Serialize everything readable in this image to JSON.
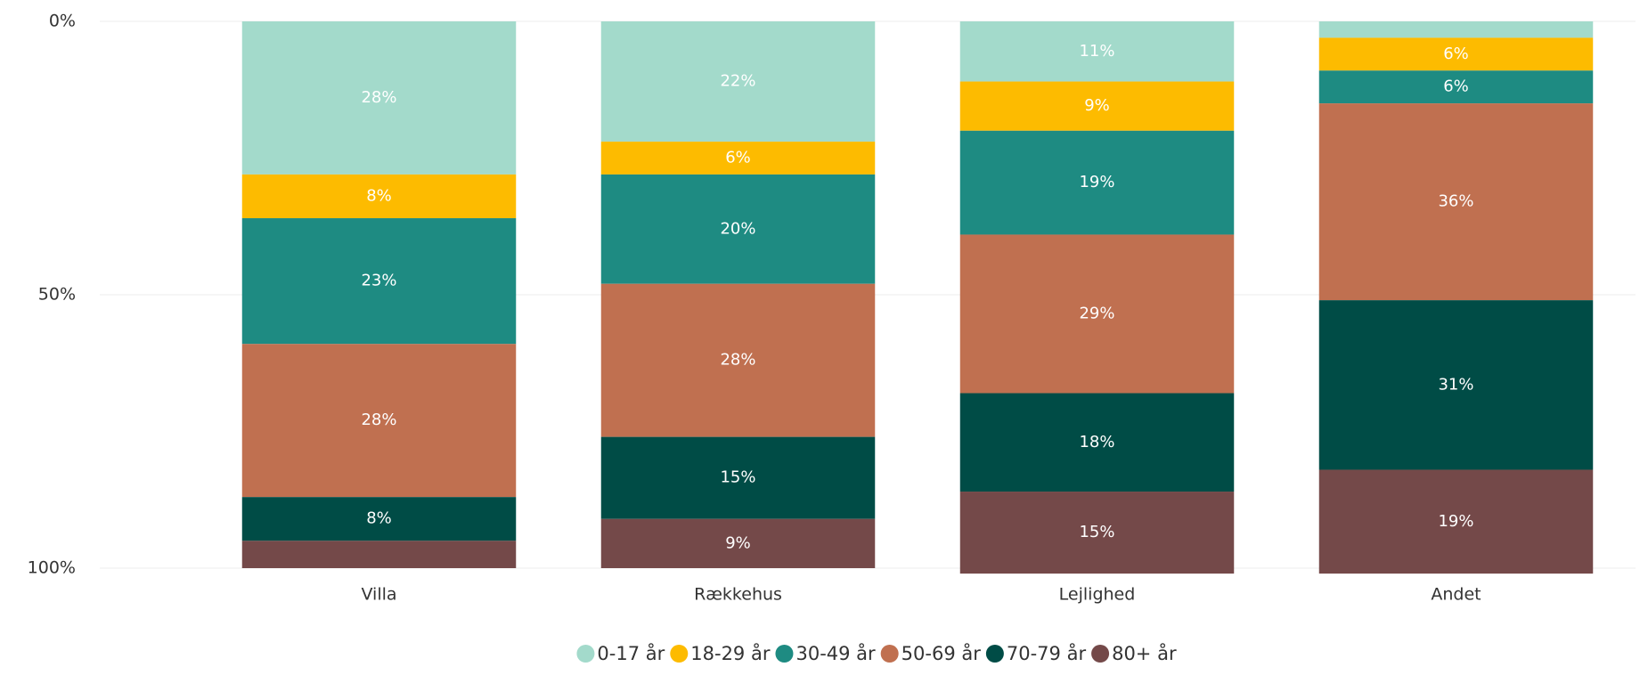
{
  "chart_data": {
    "type": "stacked_bar_100",
    "categories": [
      "Villa",
      "Rækkehus",
      "Lejlighed",
      "Andet"
    ],
    "series": [
      {
        "name": "0-17 år",
        "color": "#a3dacb",
        "values": [
          28,
          22,
          11,
          3
        ],
        "value_labels": [
          "28%",
          "22%",
          "11%",
          null
        ]
      },
      {
        "name": "18-29 år",
        "color": "#fdbb00",
        "values": [
          8,
          6,
          9,
          6
        ],
        "value_labels": [
          "8%",
          "6%",
          "9%",
          "6%"
        ]
      },
      {
        "name": "30-49 år",
        "color": "#1e8b82",
        "values": [
          23,
          20,
          19,
          6
        ],
        "value_labels": [
          "23%",
          "20%",
          "19%",
          "6%"
        ]
      },
      {
        "name": "50-69 år",
        "color": "#c07050",
        "values": [
          28,
          28,
          29,
          36
        ],
        "value_labels": [
          "28%",
          "28%",
          "29%",
          "36%"
        ]
      },
      {
        "name": "70-79 år",
        "color": "#004c46",
        "values": [
          8,
          15,
          18,
          31
        ],
        "value_labels": [
          "8%",
          "15%",
          "18%",
          "31%"
        ]
      },
      {
        "name": "80+ år",
        "color": "#744949",
        "values": [
          5,
          9,
          15,
          19
        ],
        "value_labels": [
          null,
          "9%",
          "15%",
          "19%"
        ]
      }
    ],
    "ylim": [
      0,
      100
    ],
    "y_inverted": true,
    "yticks": [
      {
        "value": 0,
        "label": "0%"
      },
      {
        "value": 50,
        "label": "50%"
      },
      {
        "value": 100,
        "label": "100%"
      }
    ],
    "grid": true,
    "legend": "bottom"
  }
}
